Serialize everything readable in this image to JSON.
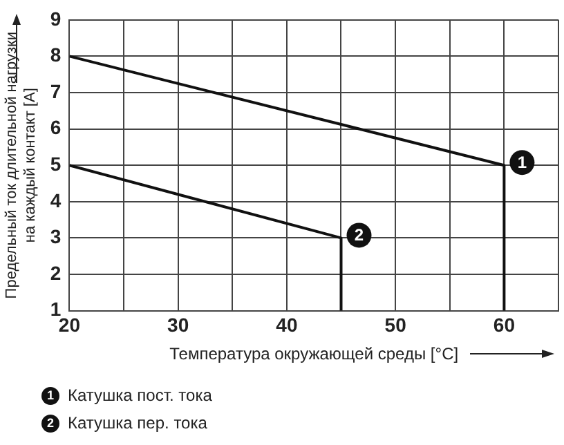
{
  "chart_data": {
    "type": "line",
    "xlabel": "Температура окружающей среды [°C]",
    "ylabel": "Предельный ток длительной нагрузки\nна каждый контакт [A]",
    "series": [
      {
        "name": "Катушка пост. тока",
        "color": "#111111",
        "x": [
          20,
          60,
          60
        ],
        "values": [
          8,
          5,
          1
        ]
      },
      {
        "name": "Катушка пер. тока",
        "color": "#111111",
        "x": [
          20,
          45,
          45
        ],
        "values": [
          5,
          3,
          1
        ]
      }
    ],
    "xlim": [
      20,
      65
    ],
    "xticks": [
      20,
      {
        "value": 25,
        "label": null
      },
      30,
      {
        "value": 35,
        "label": null
      },
      40,
      {
        "value": 45,
        "label": null
      },
      50,
      {
        "value": 55,
        "label": null
      },
      60,
      {
        "value": 65,
        "label": null
      }
    ],
    "ylim": [
      1,
      9
    ],
    "yticks": [
      1,
      2,
      3,
      4,
      5,
      6,
      7,
      8,
      9
    ],
    "annotations": [
      {
        "text": "1",
        "x": 60,
        "y": 5
      },
      {
        "text": "2",
        "x": 45,
        "y": 3
      }
    ],
    "grid": true,
    "legend": "bottom",
    "marker": "none",
    "line_style": "solid"
  }
}
